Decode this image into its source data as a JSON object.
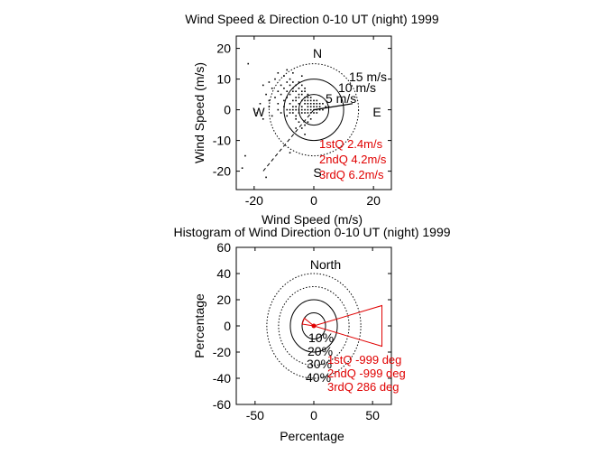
{
  "chart_data": [
    {
      "type": "scatter",
      "title": "Wind Speed & Direction 0-10 UT (night) 1999",
      "xlabel": "Wind Speed (m/s)",
      "ylabel": "Wind Speed (m/s)",
      "xlim": [
        -26,
        26
      ],
      "ylim": [
        -26,
        24
      ],
      "xticks": [
        -20,
        0,
        20
      ],
      "yticks": [
        20,
        10,
        0,
        -10,
        -20
      ],
      "grid": false,
      "range_circles": [
        {
          "radius": 5,
          "label": "5 m/s",
          "style": "solid"
        },
        {
          "radius": 10,
          "label": "10 m/s",
          "style": "solid"
        },
        {
          "radius": 15,
          "label": "15 m/s",
          "style": "dotted"
        }
      ],
      "compass": {
        "north": "N",
        "south": "S",
        "east": "E",
        "west": "W"
      },
      "mean_vector": {
        "u": 13,
        "v": 2
      },
      "dashed_line": {
        "from": [
          0,
          0
        ],
        "to": [
          -17,
          -20
        ]
      },
      "quartiles": [
        {
          "label": "1stQ 2.4m/s"
        },
        {
          "label": "2ndQ 4.2m/s"
        },
        {
          "label": "3rdQ 6.2m/s"
        }
      ],
      "points": [
        [
          -22,
          15
        ],
        [
          -18,
          2
        ],
        [
          -17,
          8
        ],
        [
          -16,
          5
        ],
        [
          -15,
          9
        ],
        [
          -15,
          3
        ],
        [
          -14,
          7
        ],
        [
          -13,
          4
        ],
        [
          -13,
          10
        ],
        [
          -12,
          6
        ],
        [
          -12,
          2
        ],
        [
          -11,
          8
        ],
        [
          -11,
          5
        ],
        [
          -10,
          7
        ],
        [
          -10,
          3
        ],
        [
          -10,
          11
        ],
        [
          -9,
          6
        ],
        [
          -9,
          4
        ],
        [
          -9,
          9
        ],
        [
          -8,
          5
        ],
        [
          -8,
          8
        ],
        [
          -8,
          2
        ],
        [
          -8,
          10
        ],
        [
          -7,
          6
        ],
        [
          -7,
          3
        ],
        [
          -7,
          7
        ],
        [
          -7,
          9
        ],
        [
          -6,
          4
        ],
        [
          -6,
          6
        ],
        [
          -6,
          8
        ],
        [
          -6,
          1
        ],
        [
          -6,
          3
        ],
        [
          -5,
          5
        ],
        [
          -5,
          7
        ],
        [
          -5,
          2
        ],
        [
          -5,
          4
        ],
        [
          -5,
          9
        ],
        [
          -4,
          3
        ],
        [
          -4,
          5
        ],
        [
          -4,
          6
        ],
        [
          -4,
          1
        ],
        [
          -4,
          8
        ],
        [
          -3,
          2
        ],
        [
          -3,
          4
        ],
        [
          -3,
          6
        ],
        [
          -3,
          3
        ],
        [
          -3,
          7
        ],
        [
          -2,
          2
        ],
        [
          -2,
          4
        ],
        [
          -2,
          1
        ],
        [
          -2,
          5
        ],
        [
          -2,
          3
        ],
        [
          -1,
          2
        ],
        [
          -1,
          3
        ],
        [
          -1,
          1
        ],
        [
          -1,
          4
        ],
        [
          0,
          2
        ],
        [
          0,
          1
        ],
        [
          0,
          3
        ],
        [
          1,
          2
        ],
        [
          1,
          1
        ],
        [
          1,
          3
        ],
        [
          2,
          2
        ],
        [
          2,
          1
        ],
        [
          3,
          2
        ],
        [
          -20,
          0
        ],
        [
          -19,
          -1
        ],
        [
          -17,
          -3
        ],
        [
          -15,
          1
        ],
        [
          -14,
          -2
        ],
        [
          -12,
          0
        ],
        [
          -11,
          -1
        ],
        [
          -10,
          1
        ],
        [
          -9,
          0
        ],
        [
          -9,
          -2
        ],
        [
          -8,
          0
        ],
        [
          -8,
          -1
        ],
        [
          -7,
          1
        ],
        [
          -7,
          -1
        ],
        [
          -7,
          0
        ],
        [
          -6,
          -2
        ],
        [
          -6,
          0
        ],
        [
          -5,
          -1
        ],
        [
          -5,
          0
        ],
        [
          -4,
          -1
        ],
        [
          -4,
          0
        ],
        [
          -3,
          -1
        ],
        [
          -3,
          0
        ],
        [
          -2,
          -1
        ],
        [
          -2,
          0
        ],
        [
          -1,
          -1
        ],
        [
          -1,
          0
        ],
        [
          0,
          0
        ],
        [
          0,
          -1
        ],
        [
          1,
          0
        ],
        [
          1,
          -1
        ],
        [
          2,
          0
        ],
        [
          3,
          0
        ],
        [
          4,
          1
        ],
        [
          5,
          1
        ],
        [
          -3,
          -5
        ],
        [
          -4,
          -6
        ],
        [
          -2,
          -4
        ],
        [
          -1,
          -3
        ],
        [
          -5,
          -4
        ],
        [
          -6,
          -3
        ],
        [
          -23,
          -15
        ],
        [
          -24,
          -19
        ],
        [
          -16,
          -22
        ],
        [
          -8,
          -14
        ],
        [
          -7,
          12
        ],
        [
          -9,
          13
        ],
        [
          -12,
          12
        ],
        [
          -4,
          11
        ],
        [
          -6,
          -6
        ],
        [
          -3,
          -8
        ]
      ]
    },
    {
      "type": "polar-histogram",
      "title": "Histogram of Wind Direction 0-10 UT (night) 1999",
      "xlabel": "Percentage",
      "ylabel": "Percentage",
      "xlim": [
        -66,
        66
      ],
      "ylim": [
        -60,
        60
      ],
      "xticks": [
        -50,
        0,
        50
      ],
      "yticks": [
        60,
        40,
        20,
        0,
        -20,
        -40,
        -60
      ],
      "rings": [
        {
          "radius": 10,
          "label": "10%",
          "style": "solid"
        },
        {
          "radius": 20,
          "label": "20%",
          "style": "solid"
        },
        {
          "radius": 30,
          "label": "30%",
          "style": "dotted"
        },
        {
          "radius": 40,
          "label": "40%",
          "style": "dotted"
        }
      ],
      "north_label": "North",
      "wedges": [
        {
          "direction_deg": 90,
          "half_width_deg": 15,
          "percent": 60
        },
        {
          "direction_deg": 292,
          "half_width_deg": 14,
          "percent": 10
        }
      ],
      "quartiles": [
        {
          "label": "1stQ -999 deg"
        },
        {
          "label": "2ndQ -999 deg"
        },
        {
          "label": "3rdQ 286 deg"
        }
      ]
    }
  ]
}
